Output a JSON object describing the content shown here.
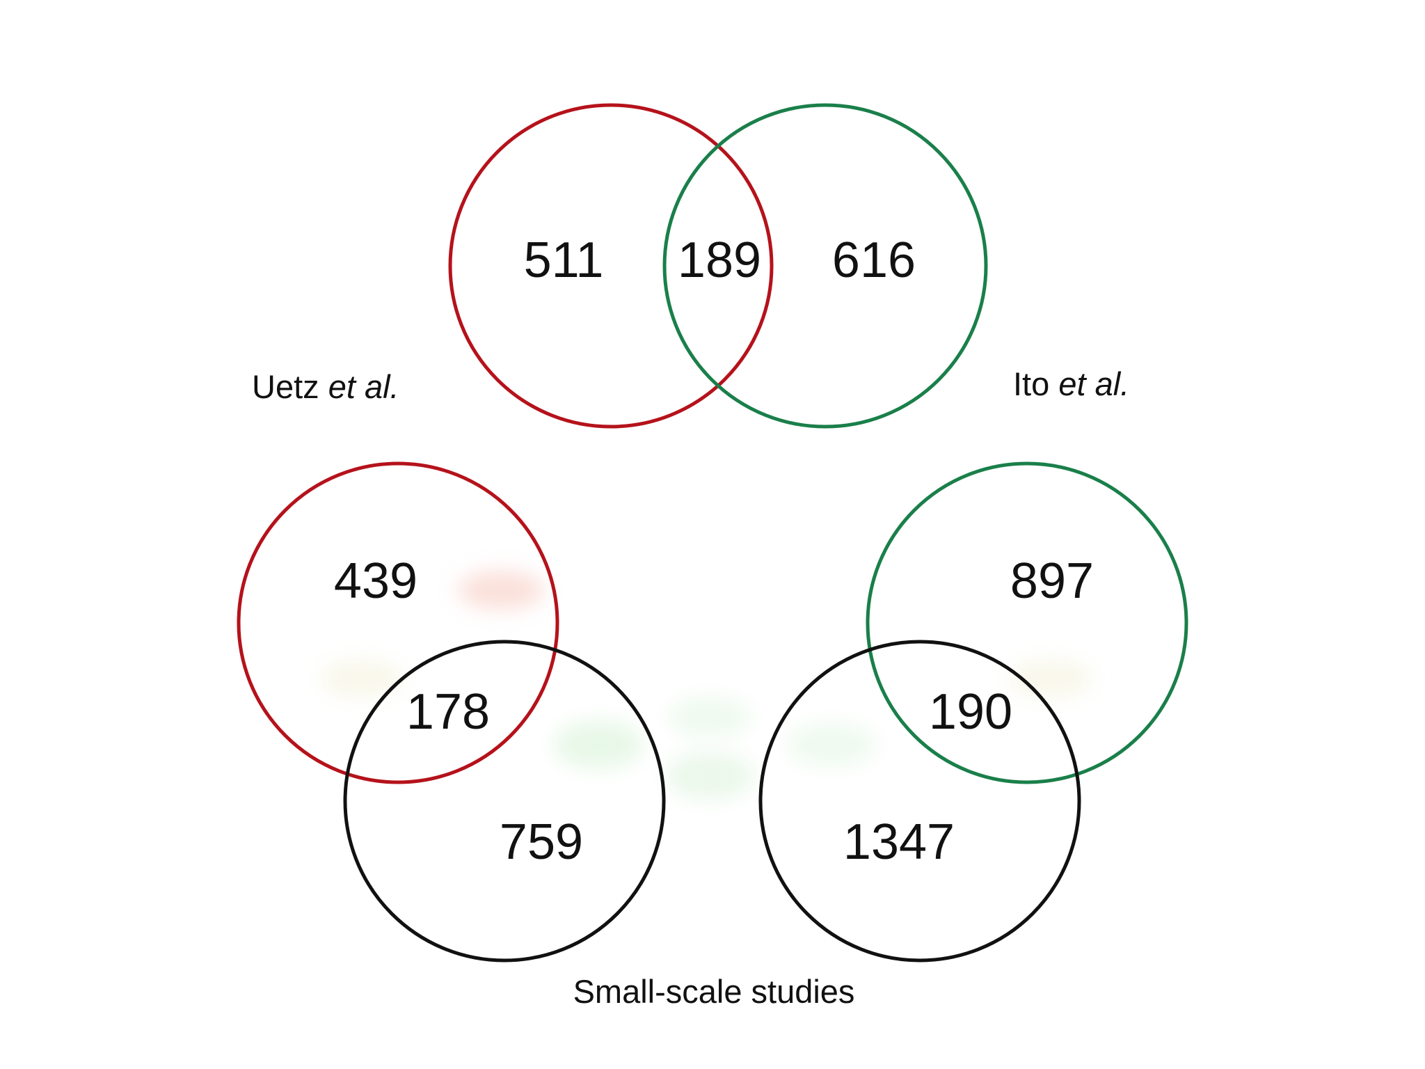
{
  "colors": {
    "uetz": "#b5121b",
    "ito": "#1a7f4a",
    "small_scale": "#111111",
    "background": "#ffffff"
  },
  "labels": {
    "uetz": {
      "name": "Uetz",
      "suffix": "et al."
    },
    "ito": {
      "name": "Ito",
      "suffix": "et al."
    },
    "small_scale": "Small-scale studies"
  },
  "venns": {
    "uetz_vs_ito": {
      "uetz_only": "511",
      "overlap": "189",
      "ito_only": "616"
    },
    "uetz_vs_small": {
      "uetz_only": "439",
      "overlap": "178",
      "small_only": "759"
    },
    "ito_vs_small": {
      "ito_only": "897",
      "overlap": "190",
      "small_only": "1347"
    }
  }
}
